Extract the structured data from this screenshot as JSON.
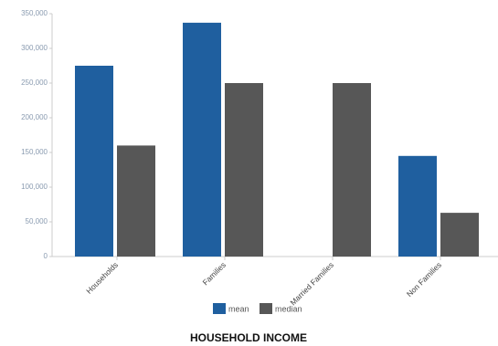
{
  "chart_data": {
    "type": "bar",
    "title": "HOUSEHOLD INCOME",
    "categories": [
      "Households",
      "Families",
      "Married Families",
      "Non Families"
    ],
    "series": [
      {
        "name": "mean",
        "color": "#1f5f9f",
        "values": [
          275000,
          337000,
          null,
          145000
        ]
      },
      {
        "name": "median",
        "color": "#575757",
        "values": [
          160000,
          250000,
          250000,
          63000
        ]
      }
    ],
    "ylim": [
      0,
      350000
    ],
    "yticks": [
      0,
      {
        "value": 50000,
        "label": "50,000"
      },
      {
        "value": 100000,
        "label": "100,000"
      },
      {
        "value": 150000,
        "label": "150,000"
      },
      {
        "value": 200000,
        "label": "200,000"
      },
      {
        "value": 250000,
        "label": "250,000"
      },
      {
        "value": 300000,
        "label": "300,000"
      },
      {
        "value": 350000,
        "label": "350,000"
      }
    ],
    "legend": "bottom"
  }
}
